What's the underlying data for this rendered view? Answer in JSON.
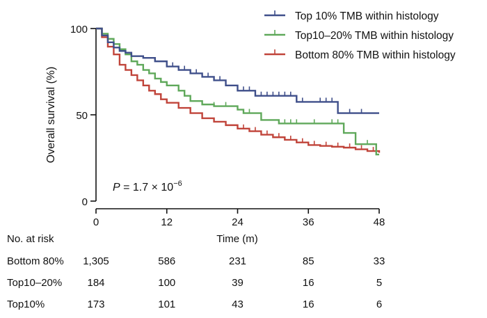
{
  "chart_data": {
    "type": "line",
    "subtype": "kaplan-meier step",
    "xlabel": "Time (m)",
    "ylabel": "Overall survival (%)",
    "xlim": [
      0,
      48
    ],
    "ylim": [
      0,
      100
    ],
    "xticks": [
      "0",
      "12",
      "24",
      "36",
      "48"
    ],
    "yticks": [
      "0",
      "50",
      "100"
    ],
    "grid": false,
    "legend_position": "top-right",
    "annotation": {
      "p": "P",
      "rest": " = 1.7 × 10",
      "exp": "−6"
    },
    "series": [
      {
        "name": "Top 10% TMB within histology",
        "color": "#3f4f8a",
        "x": [
          0,
          1,
          2,
          3,
          4,
          5,
          6,
          8,
          10,
          12,
          14,
          16,
          18,
          20,
          22,
          24,
          27,
          34,
          41,
          48
        ],
        "y": [
          100,
          96,
          92,
          89,
          87,
          86,
          84,
          83,
          81,
          78,
          76,
          74,
          72,
          70,
          67,
          64,
          61,
          57.5,
          51,
          51
        ],
        "censored": [
          10,
          13,
          15,
          17,
          19,
          21,
          25,
          26,
          28,
          29,
          30,
          31,
          32,
          33,
          35,
          38,
          39,
          40,
          43,
          45
        ]
      },
      {
        "name": "Top10–20% TMB within histology",
        "color": "#5fa85a",
        "x": [
          0,
          1,
          2,
          3,
          4,
          5,
          6,
          7,
          8,
          9,
          10,
          11,
          12,
          14,
          15,
          16,
          18,
          20,
          24,
          25,
          28,
          31,
          42,
          44,
          47.5,
          48
        ],
        "y": [
          100,
          97,
          94,
          91,
          88,
          85,
          81,
          79,
          76,
          74,
          71,
          69,
          67,
          64,
          61,
          58,
          56,
          55,
          53,
          51,
          47,
          45,
          39.5,
          33,
          27,
          27
        ],
        "censored": [
          20,
          22,
          26,
          32,
          33,
          34,
          37,
          40,
          41,
          46
        ]
      },
      {
        "name": "Bottom 80% TMB within histology",
        "color": "#c0443a",
        "x": [
          0,
          1,
          2,
          3,
          4,
          5,
          6,
          7,
          8,
          9,
          10,
          11,
          12,
          14,
          16,
          18,
          20,
          22,
          24,
          26,
          28,
          30,
          32,
          34,
          36,
          38,
          40,
          42,
          44,
          46,
          48
        ],
        "y": [
          100,
          95,
          89.5,
          85,
          79,
          76,
          73,
          70,
          67,
          64,
          62,
          59,
          57,
          54,
          51,
          48,
          46,
          44,
          42,
          40.5,
          38.5,
          37,
          35.5,
          34,
          32.5,
          32,
          31.5,
          31,
          30,
          29,
          28
        ],
        "censored": [
          25,
          27,
          29,
          31,
          33,
          35,
          37,
          39,
          41,
          43,
          45,
          47
        ]
      }
    ],
    "risk_table": {
      "title": "No. at risk",
      "times": [
        0,
        12,
        24,
        36,
        48
      ],
      "rows": [
        {
          "label": "Bottom 80%",
          "values": [
            "1,305",
            "586",
            "231",
            "85",
            "33"
          ]
        },
        {
          "label": "Top10–20%",
          "values": [
            "184",
            "100",
            "39",
            "16",
            "5"
          ]
        },
        {
          "label": "Top10%",
          "values": [
            "173",
            "101",
            "43",
            "16",
            "6"
          ]
        }
      ]
    }
  }
}
